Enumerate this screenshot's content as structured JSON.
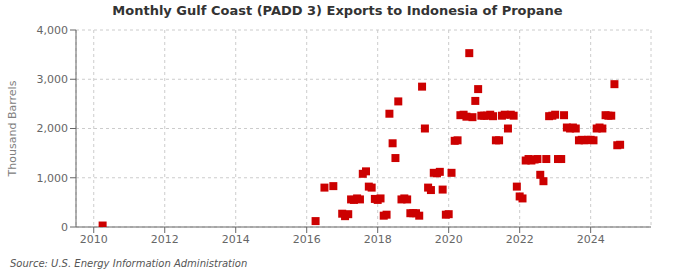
{
  "chart_data": {
    "type": "scatter",
    "title": "Monthly Gulf Coast (PADD 3) Exports to Indonesia of Propane",
    "y_label": "Thousand Barrels",
    "annotations": [
      "Source: U.S. Energy Information Administration"
    ],
    "color": "#cc0000",
    "marker": "square",
    "grid": true,
    "xlim": [
      2009.5,
      2025.7
    ],
    "xticks": [
      2010,
      2012,
      2014,
      2016,
      2018,
      2020,
      2022,
      2024
    ],
    "ylim": [
      0,
      4000
    ],
    "yticks": [
      0,
      {
        "value": 1000,
        "label": "1,000"
      },
      {
        "value": 2000,
        "label": "2,000"
      },
      {
        "value": 3000,
        "label": "3,000"
      },
      {
        "value": 4000,
        "label": "4,000"
      }
    ],
    "x": [
      2010.25,
      2016.25,
      2016.5,
      2016.75,
      2017.0,
      2017.08,
      2017.17,
      2017.25,
      2017.33,
      2017.42,
      2017.5,
      2017.58,
      2017.67,
      2017.75,
      2017.83,
      2017.92,
      2018.0,
      2018.08,
      2018.17,
      2018.25,
      2018.33,
      2018.42,
      2018.5,
      2018.58,
      2018.67,
      2018.75,
      2018.83,
      2018.92,
      2019.0,
      2019.08,
      2019.17,
      2019.25,
      2019.33,
      2019.42,
      2019.5,
      2019.58,
      2019.67,
      2019.75,
      2019.83,
      2019.92,
      2020.0,
      2020.08,
      2020.17,
      2020.25,
      2020.33,
      2020.42,
      2020.5,
      2020.58,
      2020.67,
      2020.75,
      2020.83,
      2020.92,
      2021.0,
      2021.08,
      2021.17,
      2021.25,
      2021.33,
      2021.42,
      2021.5,
      2021.58,
      2021.67,
      2021.75,
      2021.83,
      2021.92,
      2022.0,
      2022.08,
      2022.17,
      2022.25,
      2022.33,
      2022.42,
      2022.5,
      2022.58,
      2022.67,
      2022.75,
      2022.83,
      2022.92,
      2023.0,
      2023.08,
      2023.17,
      2023.25,
      2023.33,
      2023.42,
      2023.5,
      2023.58,
      2023.67,
      2023.75,
      2023.83,
      2023.92,
      2024.0,
      2024.08,
      2024.17,
      2024.25,
      2024.33,
      2024.42,
      2024.5,
      2024.58,
      2024.67,
      2024.75,
      2024.83
    ],
    "values": [
      30,
      120,
      800,
      830,
      270,
      220,
      260,
      560,
      550,
      580,
      560,
      1080,
      1130,
      820,
      800,
      570,
      550,
      580,
      230,
      250,
      2300,
      1700,
      1400,
      2550,
      560,
      580,
      560,
      280,
      280,
      280,
      230,
      2850,
      2000,
      800,
      750,
      1100,
      1090,
      1120,
      760,
      250,
      260,
      1100,
      1750,
      1760,
      2270,
      2280,
      2240,
      3530,
      2230,
      2560,
      2800,
      2260,
      2260,
      2260,
      2280,
      2250,
      1760,
      1760,
      2260,
      2280,
      2000,
      2280,
      2260,
      820,
      620,
      580,
      1350,
      1380,
      1350,
      1370,
      1380,
      1060,
      930,
      1380,
      2250,
      2260,
      2280,
      1380,
      1380,
      2270,
      2020,
      2000,
      2020,
      2000,
      1760,
      1770,
      1760,
      1770,
      1770,
      1760,
      2000,
      2020,
      2000,
      2270,
      2260,
      2260,
      2900,
      1660,
      1670
    ]
  }
}
